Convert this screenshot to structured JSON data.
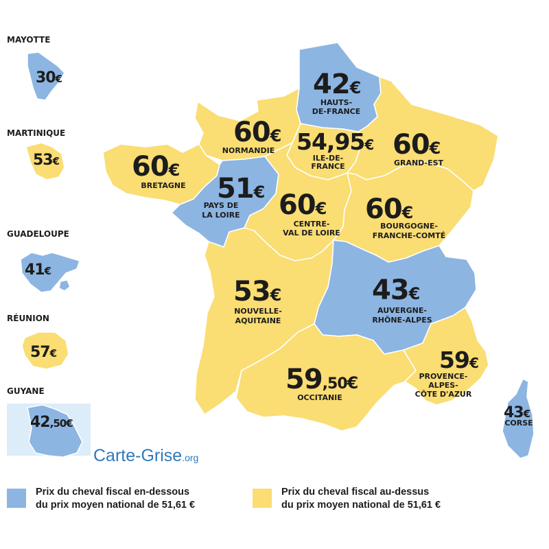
{
  "colors": {
    "below": "#8cb5e2",
    "above": "#fadd73",
    "water": "#dcedf9",
    "brand": "#2f78bd"
  },
  "regions": [
    {
      "id": "hauts-de-france",
      "price": "42",
      "cents": "",
      "currency": "€",
      "name": [
        "HAUTS-",
        "DE-FRANCE"
      ],
      "category": "below"
    },
    {
      "id": "normandie",
      "price": "60",
      "cents": "",
      "currency": "€",
      "name": [
        "NORMANDIE"
      ],
      "category": "above"
    },
    {
      "id": "ile-de-france",
      "price": "54,95",
      "cents": "",
      "currency": "€",
      "name": [
        "ILE-DE-",
        "FRANCE"
      ],
      "category": "above"
    },
    {
      "id": "grand-est",
      "price": "60",
      "cents": "",
      "currency": "€",
      "name": [
        "GRAND-EST"
      ],
      "category": "above"
    },
    {
      "id": "bretagne",
      "price": "60",
      "cents": "",
      "currency": "€",
      "name": [
        "BRETAGNE"
      ],
      "category": "above"
    },
    {
      "id": "pays-de-la-loire",
      "price": "51",
      "cents": "",
      "currency": "€",
      "name": [
        "PAYS DE",
        "LA LOIRE"
      ],
      "category": "below"
    },
    {
      "id": "centre-val-de-loire",
      "price": "60",
      "cents": "",
      "currency": "€",
      "name": [
        "CENTRE-",
        "VAL DE LOIRE"
      ],
      "category": "above"
    },
    {
      "id": "bourgogne-franche-comte",
      "price": "60",
      "cents": "",
      "currency": "€",
      "name": [
        "BOURGOGNE-",
        "FRANCHE-COMTÉ"
      ],
      "category": "above"
    },
    {
      "id": "nouvelle-aquitaine",
      "price": "53",
      "cents": "",
      "currency": "€",
      "name": [
        "NOUVELLE-",
        "AQUITAINE"
      ],
      "category": "above"
    },
    {
      "id": "auvergne-rhone-alpes",
      "price": "43",
      "cents": "",
      "currency": "€",
      "name": [
        "AUVERGNE-",
        "RHÔNE-ALPES"
      ],
      "category": "below"
    },
    {
      "id": "occitanie",
      "price": "59",
      "cents": ",50",
      "currency": "€",
      "name": [
        "OCCITANIE"
      ],
      "category": "above"
    },
    {
      "id": "provence-alpes-cote-d-azur",
      "price": "59",
      "cents": "",
      "currency": "€",
      "name": [
        "PROVENCE-",
        "ALPES-",
        "CÔTE D'AZUR"
      ],
      "category": "above"
    },
    {
      "id": "corse",
      "price": "43",
      "cents": "",
      "currency": "€",
      "name": [
        "CORSE"
      ],
      "category": "below"
    }
  ],
  "overseas": [
    {
      "id": "mayotte",
      "title": "MAYOTTE",
      "price": "30",
      "cents": "",
      "currency": "€",
      "category": "below"
    },
    {
      "id": "martinique",
      "title": "MARTINIQUE",
      "price": "53",
      "cents": "",
      "currency": "€",
      "category": "above"
    },
    {
      "id": "guadeloupe",
      "title": "GUADELOUPE",
      "price": "41",
      "cents": "",
      "currency": "€",
      "category": "below"
    },
    {
      "id": "reunion",
      "title": "RÉUNION",
      "price": "57",
      "cents": "",
      "currency": "€",
      "category": "above"
    },
    {
      "id": "guyane",
      "title": "GUYANE",
      "price": "42",
      "cents": ",50",
      "currency": "€",
      "category": "below"
    }
  ],
  "brand": {
    "name": "Carte-Grise",
    "tld": ".org"
  },
  "legend": [
    {
      "category": "below",
      "lines": [
        "Prix du cheval fiscal en-dessous",
        "du prix moyen national de 51,61 €"
      ]
    },
    {
      "category": "above",
      "lines": [
        "Prix du cheval fiscal au-dessus",
        "du prix moyen national de 51,61 €"
      ]
    }
  ]
}
